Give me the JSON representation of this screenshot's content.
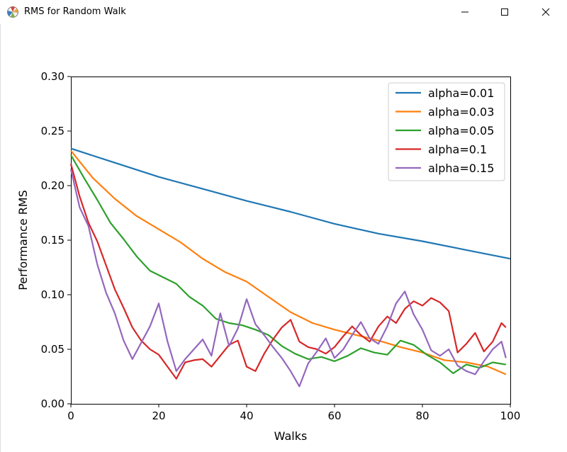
{
  "window": {
    "title": "RMS for Random Walk",
    "icon": "matplotlib-icon",
    "controls": {
      "minimize": "minimize-icon",
      "maximize": "maximize-icon",
      "close": "close-icon"
    }
  },
  "chart_data": {
    "type": "line",
    "title": "",
    "xlabel": "Walks",
    "ylabel": "Performance RMS",
    "xlim": [
      0,
      100
    ],
    "ylim": [
      0.0,
      0.3
    ],
    "xticks": [
      0,
      20,
      40,
      60,
      80,
      100
    ],
    "xtick_labels": [
      "0",
      "20",
      "40",
      "60",
      "80",
      "100"
    ],
    "yticks": [
      0.0,
      0.05,
      0.1,
      0.15,
      0.2,
      0.25,
      0.3
    ],
    "ytick_labels": [
      "0.00",
      "0.05",
      "0.10",
      "0.15",
      "0.20",
      "0.25",
      "0.30"
    ],
    "grid": false,
    "legend_position": "top-right",
    "series": [
      {
        "name": "alpha=0.01",
        "color": "#1f77b4",
        "x": [
          0,
          10,
          20,
          30,
          40,
          50,
          60,
          70,
          80,
          90,
          100
        ],
        "y": [
          0.234,
          0.221,
          0.208,
          0.197,
          0.186,
          0.176,
          0.165,
          0.156,
          0.149,
          0.141,
          0.133
        ]
      },
      {
        "name": "alpha=0.03",
        "color": "#ff7f0e",
        "x": [
          0,
          5,
          10,
          15,
          20,
          25,
          30,
          35,
          40,
          45,
          50,
          55,
          60,
          65,
          70,
          75,
          80,
          85,
          90,
          95,
          99
        ],
        "y": [
          0.232,
          0.207,
          0.188,
          0.172,
          0.16,
          0.148,
          0.133,
          0.121,
          0.112,
          0.098,
          0.084,
          0.074,
          0.068,
          0.063,
          0.058,
          0.052,
          0.047,
          0.04,
          0.038,
          0.034,
          0.027
        ]
      },
      {
        "name": "alpha=0.05",
        "color": "#2ca02c",
        "x": [
          0,
          3,
          6,
          9,
          12,
          15,
          18,
          21,
          24,
          27,
          30,
          33,
          36,
          39,
          42,
          45,
          48,
          51,
          54,
          57,
          60,
          63,
          66,
          69,
          72,
          75,
          78,
          81,
          84,
          87,
          90,
          93,
          96,
          99
        ],
        "y": [
          0.228,
          0.207,
          0.187,
          0.166,
          0.151,
          0.135,
          0.122,
          0.116,
          0.11,
          0.098,
          0.09,
          0.078,
          0.074,
          0.072,
          0.068,
          0.063,
          0.053,
          0.046,
          0.041,
          0.043,
          0.039,
          0.044,
          0.051,
          0.047,
          0.045,
          0.058,
          0.054,
          0.045,
          0.038,
          0.028,
          0.036,
          0.033,
          0.038,
          0.036
        ]
      },
      {
        "name": "alpha=0.1",
        "color": "#d62728",
        "x": [
          0,
          2,
          4,
          6,
          8,
          10,
          12,
          14,
          16,
          18,
          20,
          22,
          24,
          26,
          28,
          30,
          32,
          34,
          36,
          38,
          40,
          42,
          44,
          46,
          48,
          50,
          52,
          54,
          56,
          58,
          60,
          62,
          64,
          66,
          68,
          70,
          72,
          74,
          76,
          78,
          80,
          82,
          84,
          86,
          88,
          90,
          92,
          94,
          96,
          98,
          99
        ],
        "y": [
          0.22,
          0.19,
          0.166,
          0.149,
          0.127,
          0.105,
          0.088,
          0.07,
          0.058,
          0.05,
          0.045,
          0.034,
          0.023,
          0.038,
          0.04,
          0.041,
          0.034,
          0.044,
          0.054,
          0.058,
          0.034,
          0.03,
          0.046,
          0.059,
          0.07,
          0.077,
          0.057,
          0.052,
          0.05,
          0.046,
          0.052,
          0.062,
          0.071,
          0.063,
          0.057,
          0.071,
          0.08,
          0.074,
          0.087,
          0.094,
          0.09,
          0.097,
          0.093,
          0.085,
          0.047,
          0.055,
          0.065,
          0.048,
          0.057,
          0.074,
          0.07
        ]
      },
      {
        "name": "alpha=0.15",
        "color": "#9467bd",
        "x": [
          0,
          2,
          4,
          6,
          8,
          10,
          12,
          14,
          16,
          18,
          20,
          22,
          24,
          26,
          28,
          30,
          32,
          34,
          36,
          38,
          40,
          42,
          44,
          46,
          48,
          50,
          52,
          54,
          56,
          58,
          60,
          62,
          64,
          66,
          68,
          70,
          72,
          74,
          76,
          78,
          80,
          82,
          84,
          86,
          88,
          90,
          92,
          94,
          96,
          98,
          99
        ],
        "y": [
          0.215,
          0.18,
          0.163,
          0.128,
          0.102,
          0.083,
          0.058,
          0.041,
          0.056,
          0.071,
          0.092,
          0.057,
          0.03,
          0.041,
          0.05,
          0.059,
          0.044,
          0.083,
          0.053,
          0.069,
          0.096,
          0.073,
          0.063,
          0.052,
          0.042,
          0.03,
          0.016,
          0.037,
          0.048,
          0.06,
          0.042,
          0.05,
          0.063,
          0.075,
          0.06,
          0.055,
          0.071,
          0.092,
          0.103,
          0.082,
          0.068,
          0.049,
          0.044,
          0.05,
          0.035,
          0.03,
          0.027,
          0.039,
          0.05,
          0.057,
          0.042
        ]
      }
    ]
  }
}
